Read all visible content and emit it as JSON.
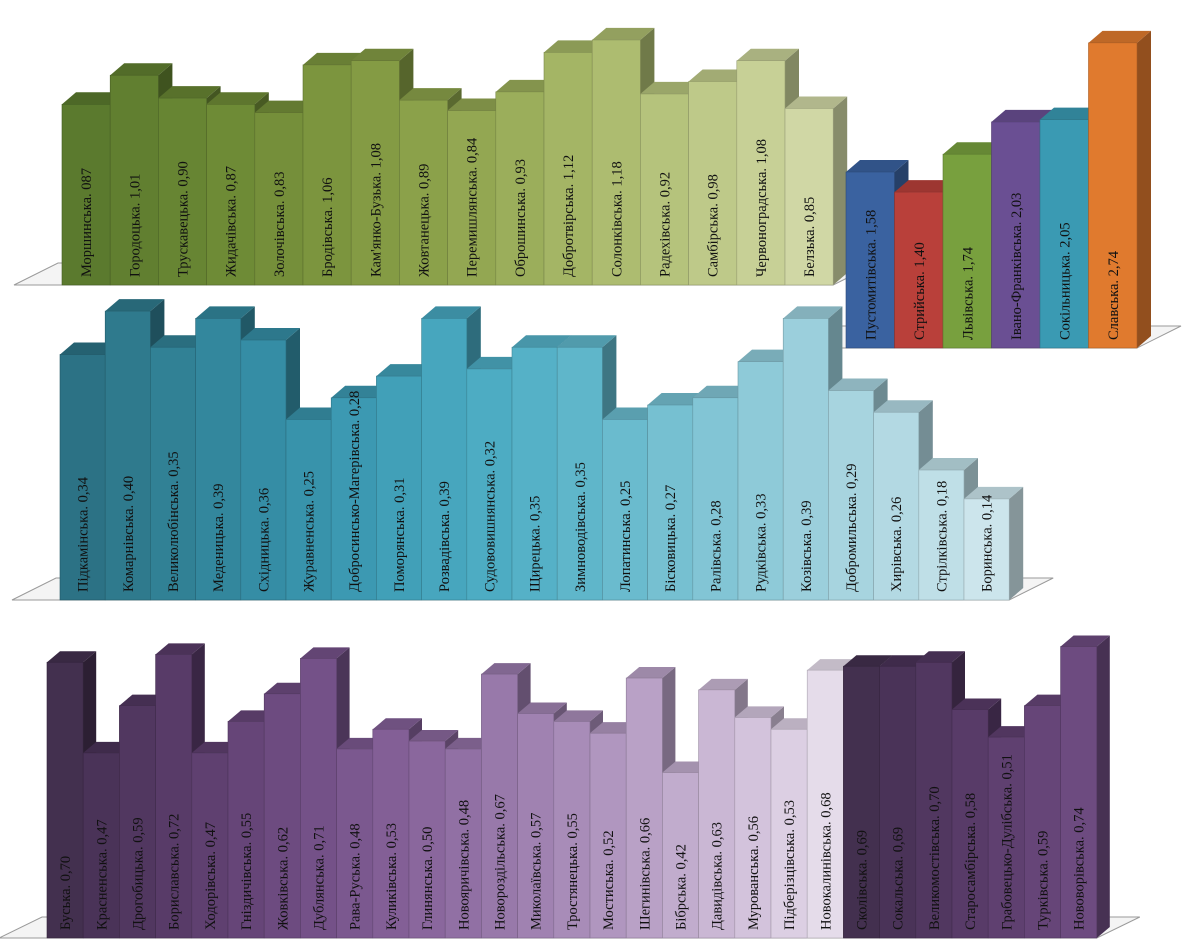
{
  "chart_data": [
    {
      "type": "bar",
      "title": "",
      "xlabel": "",
      "ylabel": "",
      "ylim": [
        0,
        1.3
      ],
      "colors": [
        "#5b7a2e",
        "#617f30",
        "#678533",
        "#6e8b36",
        "#758f3a",
        "#7c953e",
        "#849b44",
        "#8ba14a",
        "#93a752",
        "#9bae5b",
        "#a4b565",
        "#adbc70",
        "#b5c37c",
        "#bec989",
        "#c7d096",
        "#d0d7a5"
      ],
      "categories": [
        {
          "label": "Моршинська. 087",
          "value": 0.87
        },
        {
          "label": "Городоцька. 1,01",
          "value": 1.01
        },
        {
          "label": "Трускавецька. 0,90",
          "value": 0.9
        },
        {
          "label": "Жидачівська. 0,87",
          "value": 0.87
        },
        {
          "label": "Золочівська. 0,83",
          "value": 0.83
        },
        {
          "label": "Бродівська. 1,06",
          "value": 1.06
        },
        {
          "label": "Кам'янко-Бузька. 1,08",
          "value": 1.08
        },
        {
          "label": "Жовтанецька. 0,89",
          "value": 0.89
        },
        {
          "label": "Перемишлянська. 0,84",
          "value": 0.84
        },
        {
          "label": "Оброшинська. 0,93",
          "value": 0.93
        },
        {
          "label": "Добротвірська. 1,12",
          "value": 1.12
        },
        {
          "label": "Солонківська. 1,18",
          "value": 1.18
        },
        {
          "label": "Радехівська. 0,92",
          "value": 0.92
        },
        {
          "label": "Самбірська. 0,98",
          "value": 0.98
        },
        {
          "label": "Червоноградська. 1,08",
          "value": 1.08
        },
        {
          "label": "Белзька. 0,85",
          "value": 0.85
        }
      ]
    },
    {
      "type": "bar",
      "title": "",
      "xlabel": "",
      "ylabel": "",
      "ylim": [
        0,
        2.9
      ],
      "colors": [
        "#3a62a0",
        "#b9403a",
        "#78a03e",
        "#6a4f93",
        "#3a9ab3",
        "#e07a2e"
      ],
      "categories": [
        {
          "label": "Пустомитівська. 1,58",
          "value": 1.58
        },
        {
          "label": "Стрийська. 1,40",
          "value": 1.4
        },
        {
          "label": "Львівська. 1,74",
          "value": 1.74
        },
        {
          "label": "Івано-Франківська. 2,03",
          "value": 2.03
        },
        {
          "label": "Сокільницька. 2,05",
          "value": 2.05
        },
        {
          "label": "Славська. 2,74",
          "value": 2.74
        }
      ]
    },
    {
      "type": "bar",
      "title": "",
      "xlabel": "",
      "ylabel": "",
      "ylim": [
        0,
        0.45
      ],
      "colors": [
        "#2c7285",
        "#2f7a8d",
        "#318195",
        "#33879d",
        "#358da5",
        "#3893ab",
        "#3c99b2",
        "#41a0b8",
        "#47a6be",
        "#4dacc3",
        "#55b1c7",
        "#5fb6ca",
        "#6abbce",
        "#76c0d1",
        "#82c5d5",
        "#8ecad8",
        "#9bcfdc",
        "#a7d4df",
        "#b3d9e3",
        "#bfdfe7",
        "#cce5ec",
        "#d8ecf1"
      ],
      "categories": [
        {
          "label": "Підкамінська. 0,34",
          "value": 0.34
        },
        {
          "label": "Комарнівська. 0,40",
          "value": 0.4
        },
        {
          "label": "Великолюбінська. 0,35",
          "value": 0.35
        },
        {
          "label": "Меденицька. 0,39",
          "value": 0.39
        },
        {
          "label": "Східницька. 0,36",
          "value": 0.36
        },
        {
          "label": "Журавненська. 0,25",
          "value": 0.25
        },
        {
          "label": "Добросинсько-Магерівська. 0,28",
          "value": 0.28
        },
        {
          "label": "Поморянська. 0,31",
          "value": 0.31
        },
        {
          "label": "Розвадівська. 0,39",
          "value": 0.39
        },
        {
          "label": "Судововишнянська. 0,32",
          "value": 0.32
        },
        {
          "label": "Щирецька. 0,35",
          "value": 0.35
        },
        {
          "label": "Зимноводівська. 0,35",
          "value": 0.35
        },
        {
          "label": "Лопатинська. 0,25",
          "value": 0.25
        },
        {
          "label": "Бісковицька. 0,27",
          "value": 0.27
        },
        {
          "label": "Ралівська. 0,28",
          "value": 0.28
        },
        {
          "label": "Рудківська. 0,33",
          "value": 0.33
        },
        {
          "label": "Козівська. 0,39",
          "value": 0.39
        },
        {
          "label": "Добромильська. 0,29",
          "value": 0.29
        },
        {
          "label": "Хирівська. 0,26",
          "value": 0.26
        },
        {
          "label": "Стрілківська. 0,18",
          "value": 0.18
        },
        {
          "label": "Боринська. 0,14",
          "value": 0.14
        }
      ]
    },
    {
      "type": "bar",
      "title": "",
      "xlabel": "",
      "ylabel": "",
      "ylim": [
        0,
        0.82
      ],
      "colors": [
        "#43304f",
        "#4a3358",
        "#513760",
        "#583b68",
        "#5f4070",
        "#664578",
        "#6d4b80",
        "#745188",
        "#7b588f",
        "#835f96",
        "#8a679d",
        "#9170a4",
        "#9879aa",
        "#a082b1",
        "#a88cb8",
        "#b096bf",
        "#b9a1c6",
        "#c1accd",
        "#cab7d4",
        "#d3c3dc",
        "#dccfe3",
        "#e5dcea"
      ],
      "categories": [
        {
          "label": "Буська. 0,70",
          "value": 0.7
        },
        {
          "label": "Красненська. 0,47",
          "value": 0.47
        },
        {
          "label": "Дрогобицька. 0,59",
          "value": 0.59
        },
        {
          "label": "Бориславська. 0,72",
          "value": 0.72
        },
        {
          "label": "Ходорівська. 0,47",
          "value": 0.47
        },
        {
          "label": "Гніздичівська. 0,55",
          "value": 0.55
        },
        {
          "label": "Жовківська. 0,62",
          "value": 0.62
        },
        {
          "label": "Дублянська. 0,71",
          "value": 0.71
        },
        {
          "label": "Рава-Руська. 0,48",
          "value": 0.48
        },
        {
          "label": "Куликівська. 0,53",
          "value": 0.53
        },
        {
          "label": "Глинянська. 0,50",
          "value": 0.5
        },
        {
          "label": "Новояричівська. 0,48",
          "value": 0.48
        },
        {
          "label": "Новороздільська. 0,67",
          "value": 0.67
        },
        {
          "label": "Миколаївська. 0,57",
          "value": 0.57
        },
        {
          "label": "Тростянецька. 0,55",
          "value": 0.55
        },
        {
          "label": "Мостиська. 0,52",
          "value": 0.52
        },
        {
          "label": "Шегинівська. 0,66",
          "value": 0.66
        },
        {
          "label": "Бібрська. 0,42",
          "value": 0.42
        },
        {
          "label": "Давидівська. 0,63",
          "value": 0.63
        },
        {
          "label": "Мурованська. 0,56",
          "value": 0.56
        },
        {
          "label": "Підберізцівська. 0,53",
          "value": 0.53
        },
        {
          "label": "Новокалинівська. 0,68",
          "value": 0.68
        },
        {
          "label": "Сколівська. 0,69",
          "value": 0.69
        },
        {
          "label": "Сокальська. 0,69",
          "value": 0.69
        },
        {
          "label": "Великомостівська. 0,70",
          "value": 0.7
        },
        {
          "label": "Старосамбірська. 0,58",
          "value": 0.58
        },
        {
          "label": "Грабовецько-Дулібська. 0,51",
          "value": 0.51
        },
        {
          "label": "Турківська. 0,59",
          "value": 0.59
        },
        {
          "label": "Нововорівська. 0,74",
          "value": 0.74
        }
      ]
    }
  ]
}
